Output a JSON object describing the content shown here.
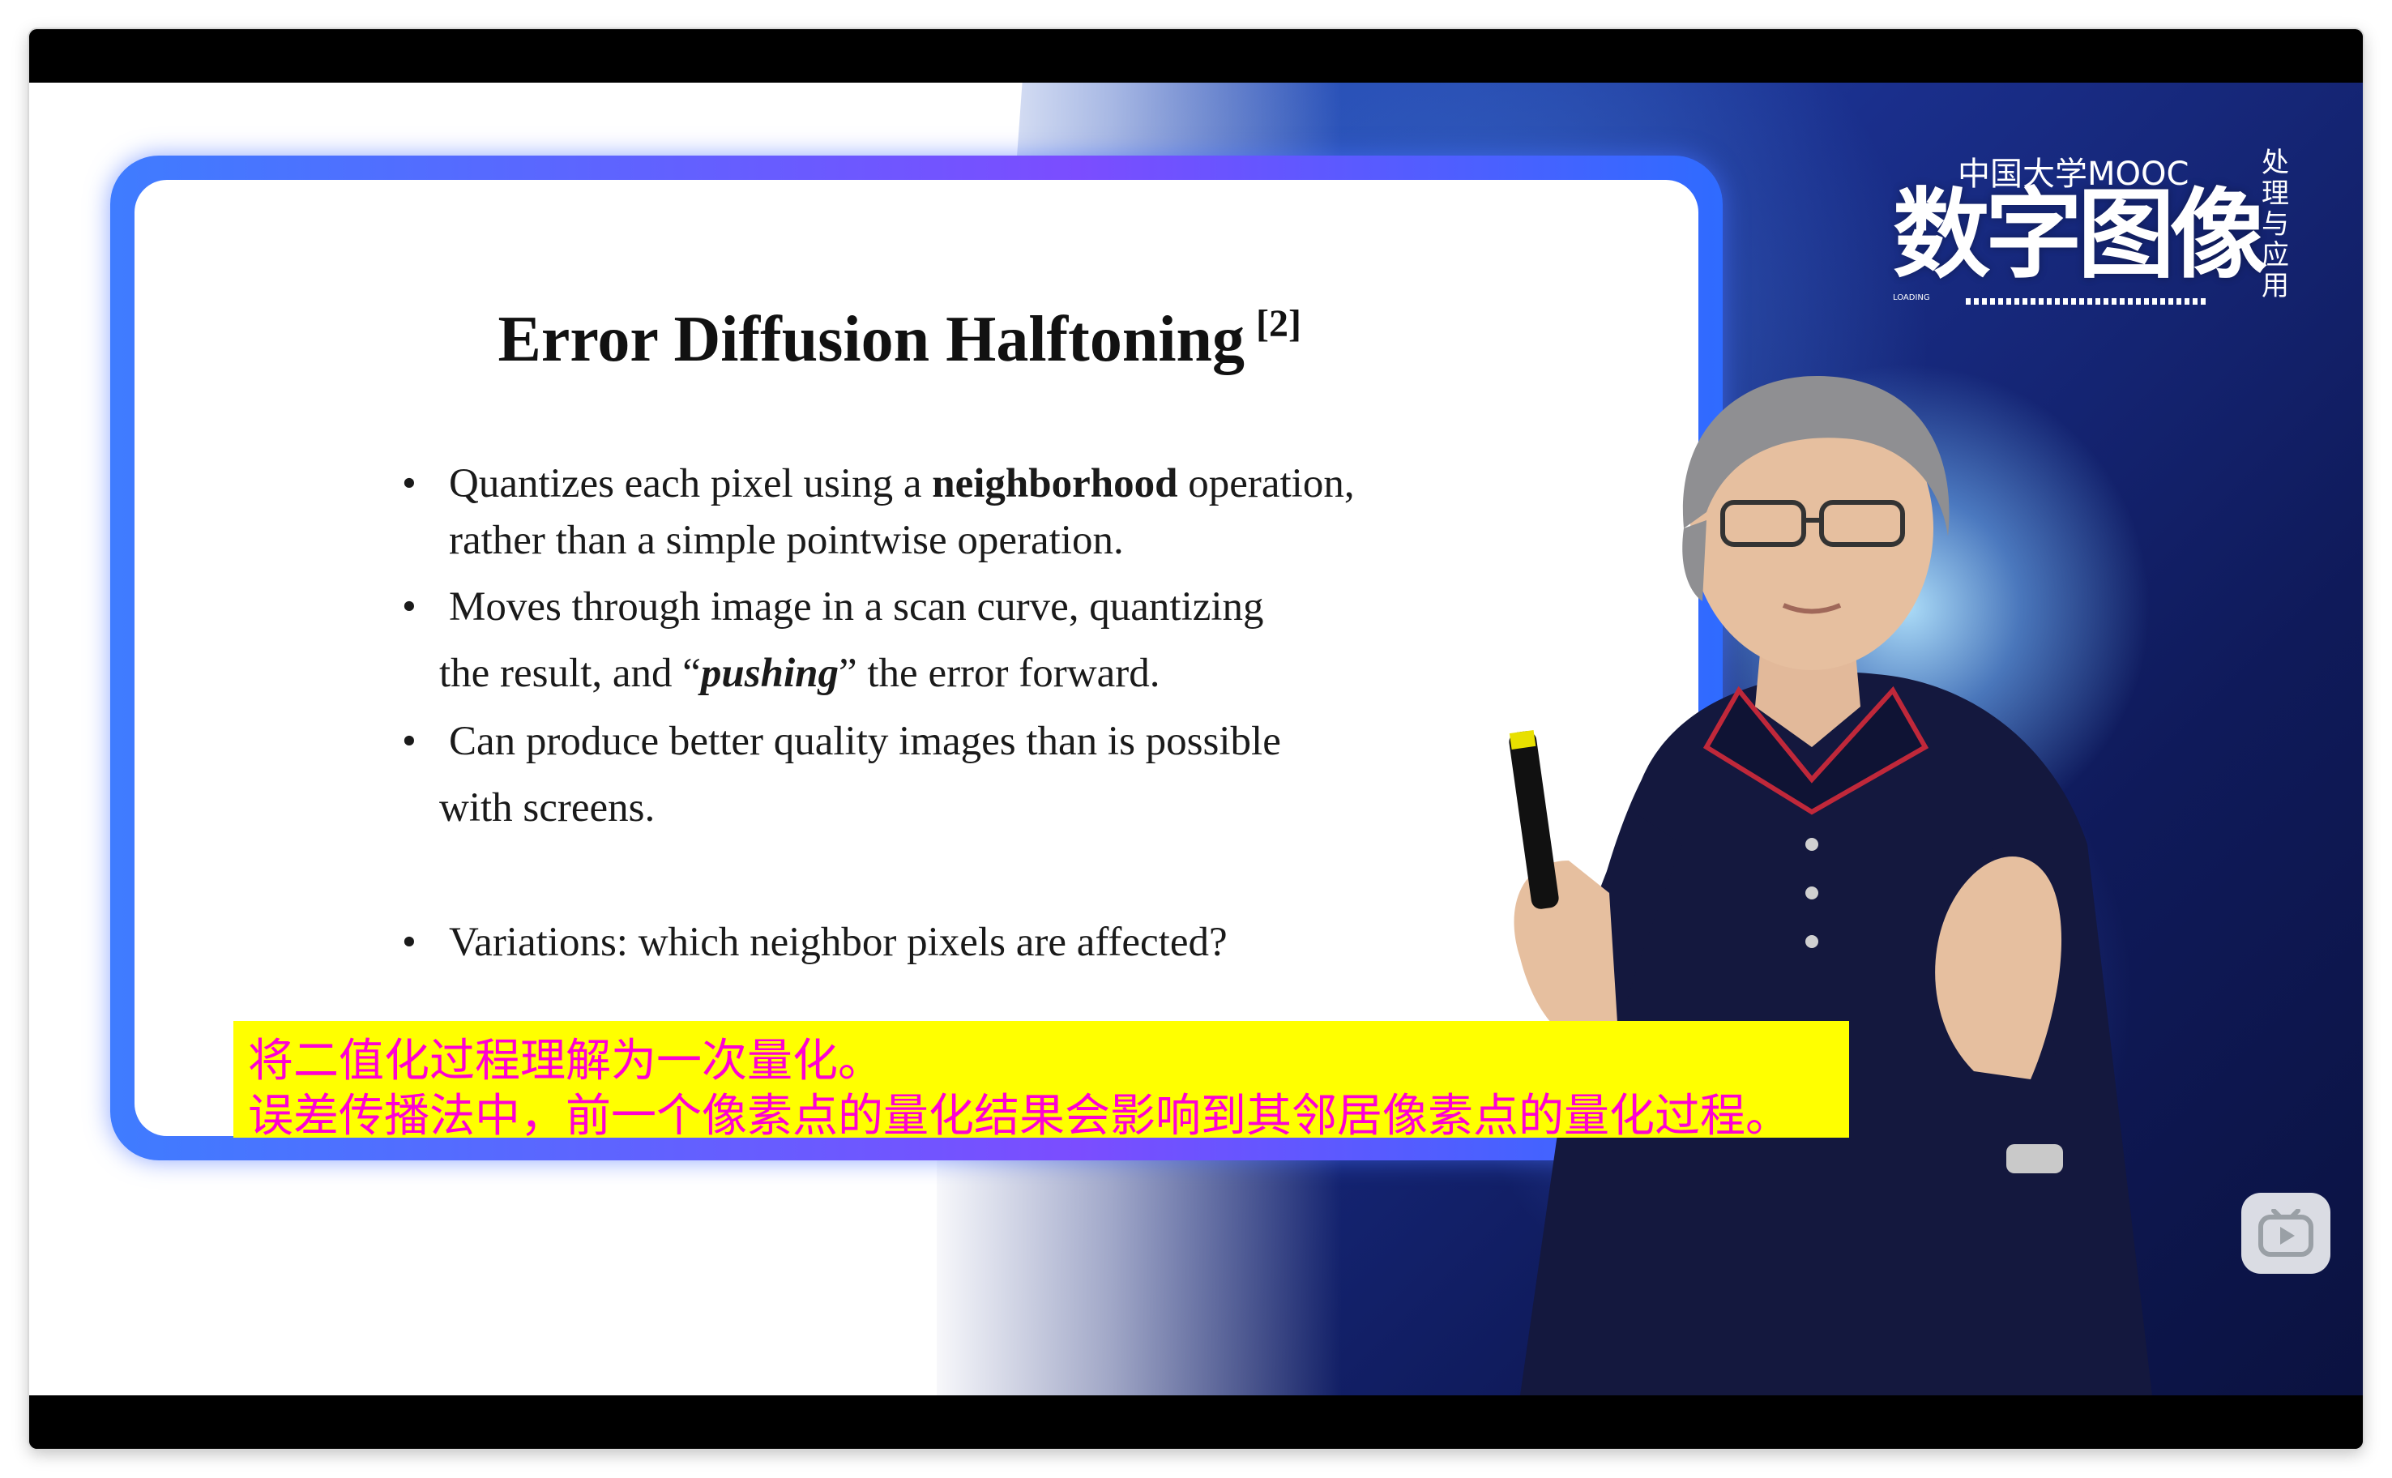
{
  "slide": {
    "title": "Error Diffusion Halftoning",
    "title_ref": "[2]",
    "bullets": [
      {
        "pre": "Quantizes each pixel using a ",
        "bold": "neighborhood",
        "post": " operation,",
        "line2": "rather than a simple pointwise operation."
      },
      {
        "line1": "Moves through image in a scan curve, quantizing",
        "line2_pre": "the result, and “",
        "line2_em": "pushing",
        "line2_post": "” the error forward."
      },
      {
        "line1": "Can produce better quality images than is possible",
        "line2": "with screens."
      },
      {
        "line1": "Variations: which neighbor pixels are affected?"
      }
    ],
    "bullet_char": "•"
  },
  "subtitle": {
    "line1": "将二值化过程理解为一次量化。",
    "line2": "误差传播法中，前一个像素点的量化结果会影响到其邻居像素点的量化过程。"
  },
  "logo": {
    "main": "数字图像",
    "vertical": "处理与应用",
    "overlay": "中国大学MOOC",
    "loading": "LOADING"
  },
  "colors": {
    "subtitle_bg": "#ffff00",
    "subtitle_text": "#ff00d2",
    "frame": "#4f6bff",
    "background_blue": "#1a2f8c"
  },
  "icons": {
    "play": "play-icon"
  }
}
